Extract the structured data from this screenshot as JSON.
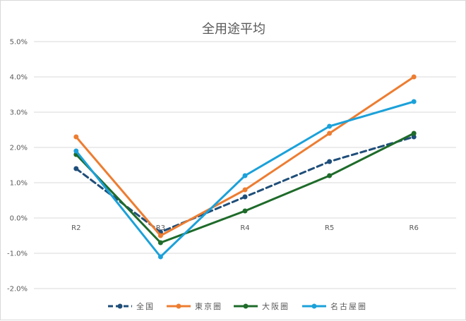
{
  "chart_data": {
    "type": "line",
    "title": "全用途平均",
    "categories": [
      "R2",
      "R3",
      "R4",
      "R5",
      "R6"
    ],
    "y_ticks": [
      "5.0%",
      "4.0%",
      "3.0%",
      "2.0%",
      "1.0%",
      "0.0%",
      "-1.0%",
      "-2.0%"
    ],
    "ylim": [
      -2.0,
      5.0
    ],
    "ylabel": "",
    "xlabel": "",
    "grid": true,
    "legend_position": "bottom",
    "series": [
      {
        "name": "全国",
        "color": "#1f4e79",
        "dashed": true,
        "values": [
          1.4,
          -0.4,
          0.6,
          1.6,
          2.3
        ]
      },
      {
        "name": "東京圏",
        "color": "#ed7d31",
        "dashed": false,
        "values": [
          2.3,
          -0.5,
          0.8,
          2.4,
          4.0
        ]
      },
      {
        "name": "大阪圏",
        "color": "#1e6b2a",
        "dashed": false,
        "values": [
          1.8,
          -0.7,
          0.2,
          1.2,
          2.4
        ]
      },
      {
        "name": "名古屋圏",
        "color": "#1ba1d9",
        "dashed": false,
        "values": [
          1.9,
          -1.1,
          1.2,
          2.6,
          3.3
        ]
      }
    ]
  }
}
